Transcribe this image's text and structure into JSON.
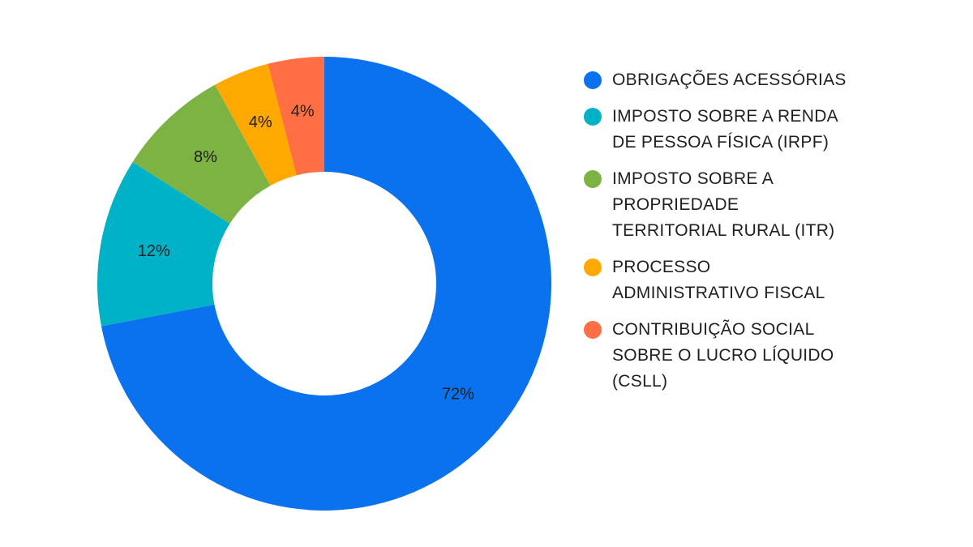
{
  "chart_data": {
    "type": "pie",
    "donut": true,
    "categories": [
      "OBRIGAÇÕES ACESSÓRIAS",
      "IMPOSTO SOBRE A RENDA DE PESSOA FÍSICA (IRPF)",
      "IMPOSTO SOBRE A PROPRIEDADE TERRITORIAL RURAL (ITR)",
      "PROCESSO ADMINISTRATIVO FISCAL",
      "CONTRIBUIÇÃO SOCIAL SOBRE O LUCRO LÍQUIDO (CSLL)"
    ],
    "values": [
      72,
      12,
      8,
      4,
      4
    ],
    "data_labels": [
      "72%",
      "12%",
      "8%",
      "4%",
      "4%"
    ],
    "colors": [
      "#0b72ef",
      "#00b2c8",
      "#7cb342",
      "#ffa800",
      "#ff6f43"
    ],
    "legend_position": "right"
  }
}
